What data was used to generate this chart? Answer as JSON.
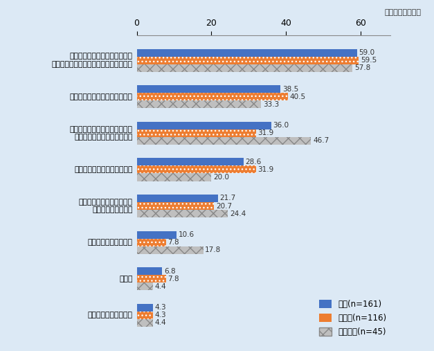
{
  "categories": [
    "進出先のビジネスコストの増加\n（物価高、円安等によるコスト増含む）",
    "国際輸送の混乱・物流費の高騰",
    "進出先のビジネス環境（規制、\n取引先との関係など）の変化",
    "経済安全保障上のリスク回避",
    "進出先の人材確保の難しさ\n（労働力不足含む）",
    "進出先での競合の激化",
    "その他",
    "人権・環境等への配慮"
  ],
  "series": {
    "全体(n=161)": [
      59.0,
      38.5,
      36.0,
      28.6,
      21.7,
      10.6,
      6.8,
      4.3
    ],
    "製造業(n=116)": [
      59.5,
      40.5,
      31.9,
      31.9,
      20.7,
      7.8,
      7.8,
      4.3
    ],
    "非製造業(n=45)": [
      57.8,
      33.3,
      46.7,
      20.0,
      24.4,
      17.8,
      4.4,
      4.4
    ]
  },
  "colors": {
    "全体(n=161)": "#4472C4",
    "製造業(n=116)": "#ED7D31",
    "非製造業(n=45)": "#BFBFBF"
  },
  "xlim": [
    0,
    68
  ],
  "xticks": [
    0,
    20,
    40,
    60
  ],
  "subtitle": "（複数回答、％）",
  "background_color": "#DCE9F5",
  "bar_height": 0.21
}
